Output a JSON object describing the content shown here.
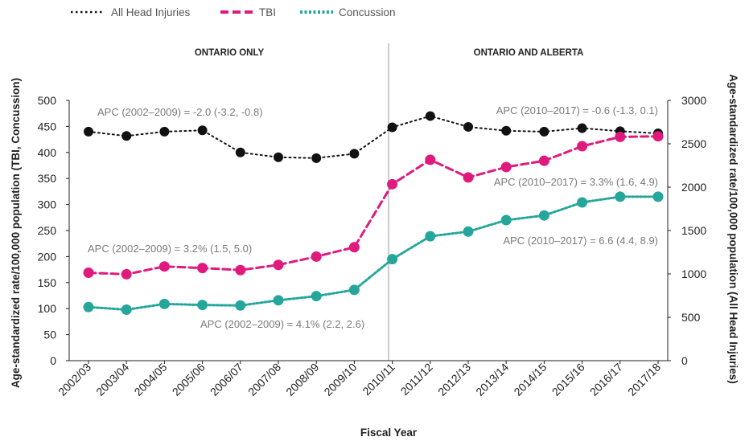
{
  "chart_data": {
    "type": "line",
    "categories": [
      "2002/03",
      "2003/04",
      "2004/05",
      "2005/06",
      "2006/07",
      "2007/08",
      "2008/09",
      "2009/10",
      "2010/11",
      "2011/12",
      "2012/13",
      "2013/14",
      "2014/15",
      "2015/16",
      "2016/17",
      "2017/18"
    ],
    "xlabel": "Fiscal Year",
    "ylabel_left": "Age-standardized rate/100,000 population (TBI, Concussion)",
    "ylabel_right": "Age-standardized rate/100,000 population (All Head Injuries)",
    "ylim_left": [
      0,
      500
    ],
    "ylim_right": [
      0,
      3000
    ],
    "yticks_left": [
      "0",
      "50",
      "100",
      "150",
      "200",
      "250",
      "300",
      "350",
      "400",
      "450",
      "500"
    ],
    "yticks_right": [
      "0",
      "500",
      "1000",
      "1500",
      "2000",
      "2500",
      "3000"
    ],
    "series": [
      {
        "name": "All Head Injuries",
        "axis": "right",
        "color": "#111111",
        "values": [
          2640,
          2590,
          2640,
          2655,
          2400,
          2345,
          2335,
          2385,
          2690,
          2820,
          2695,
          2650,
          2640,
          2680,
          2645,
          2620
        ]
      },
      {
        "name": "TBI",
        "axis": "left",
        "color": "#e0197d",
        "values": [
          169,
          166,
          181,
          178,
          174,
          184,
          200,
          218,
          339,
          386,
          352,
          372,
          384,
          412,
          430,
          431
        ]
      },
      {
        "name": "Concussion",
        "axis": "left",
        "color": "#26a69a",
        "values": [
          103,
          98,
          109,
          107,
          106,
          116,
          124,
          136,
          195,
          239,
          248,
          270,
          279,
          304,
          315,
          315
        ]
      }
    ],
    "regions": [
      "ONTARIO ONLY",
      "ONTARIO AND ALBERTA"
    ],
    "annotations": [
      "APC (2002–2009) = -2.0 (-3.2, -0.8)",
      "APC (2010–2017) = -0.6 (-1.3, 0.1)",
      "APC (2010–2017) = 3.3% (1.6, 4.9)",
      "APC (2002–2009) = 3.2% (1.5, 5.0)",
      "APC (2010–2017) = 6.6 (4.4, 8.9)",
      "APC (2002–2009) = 4.1% (2.2, 2.6)"
    ],
    "legend": [
      "All Head Injuries",
      "TBI",
      "Concussion"
    ],
    "grid": false,
    "legend_position": "top-left"
  }
}
